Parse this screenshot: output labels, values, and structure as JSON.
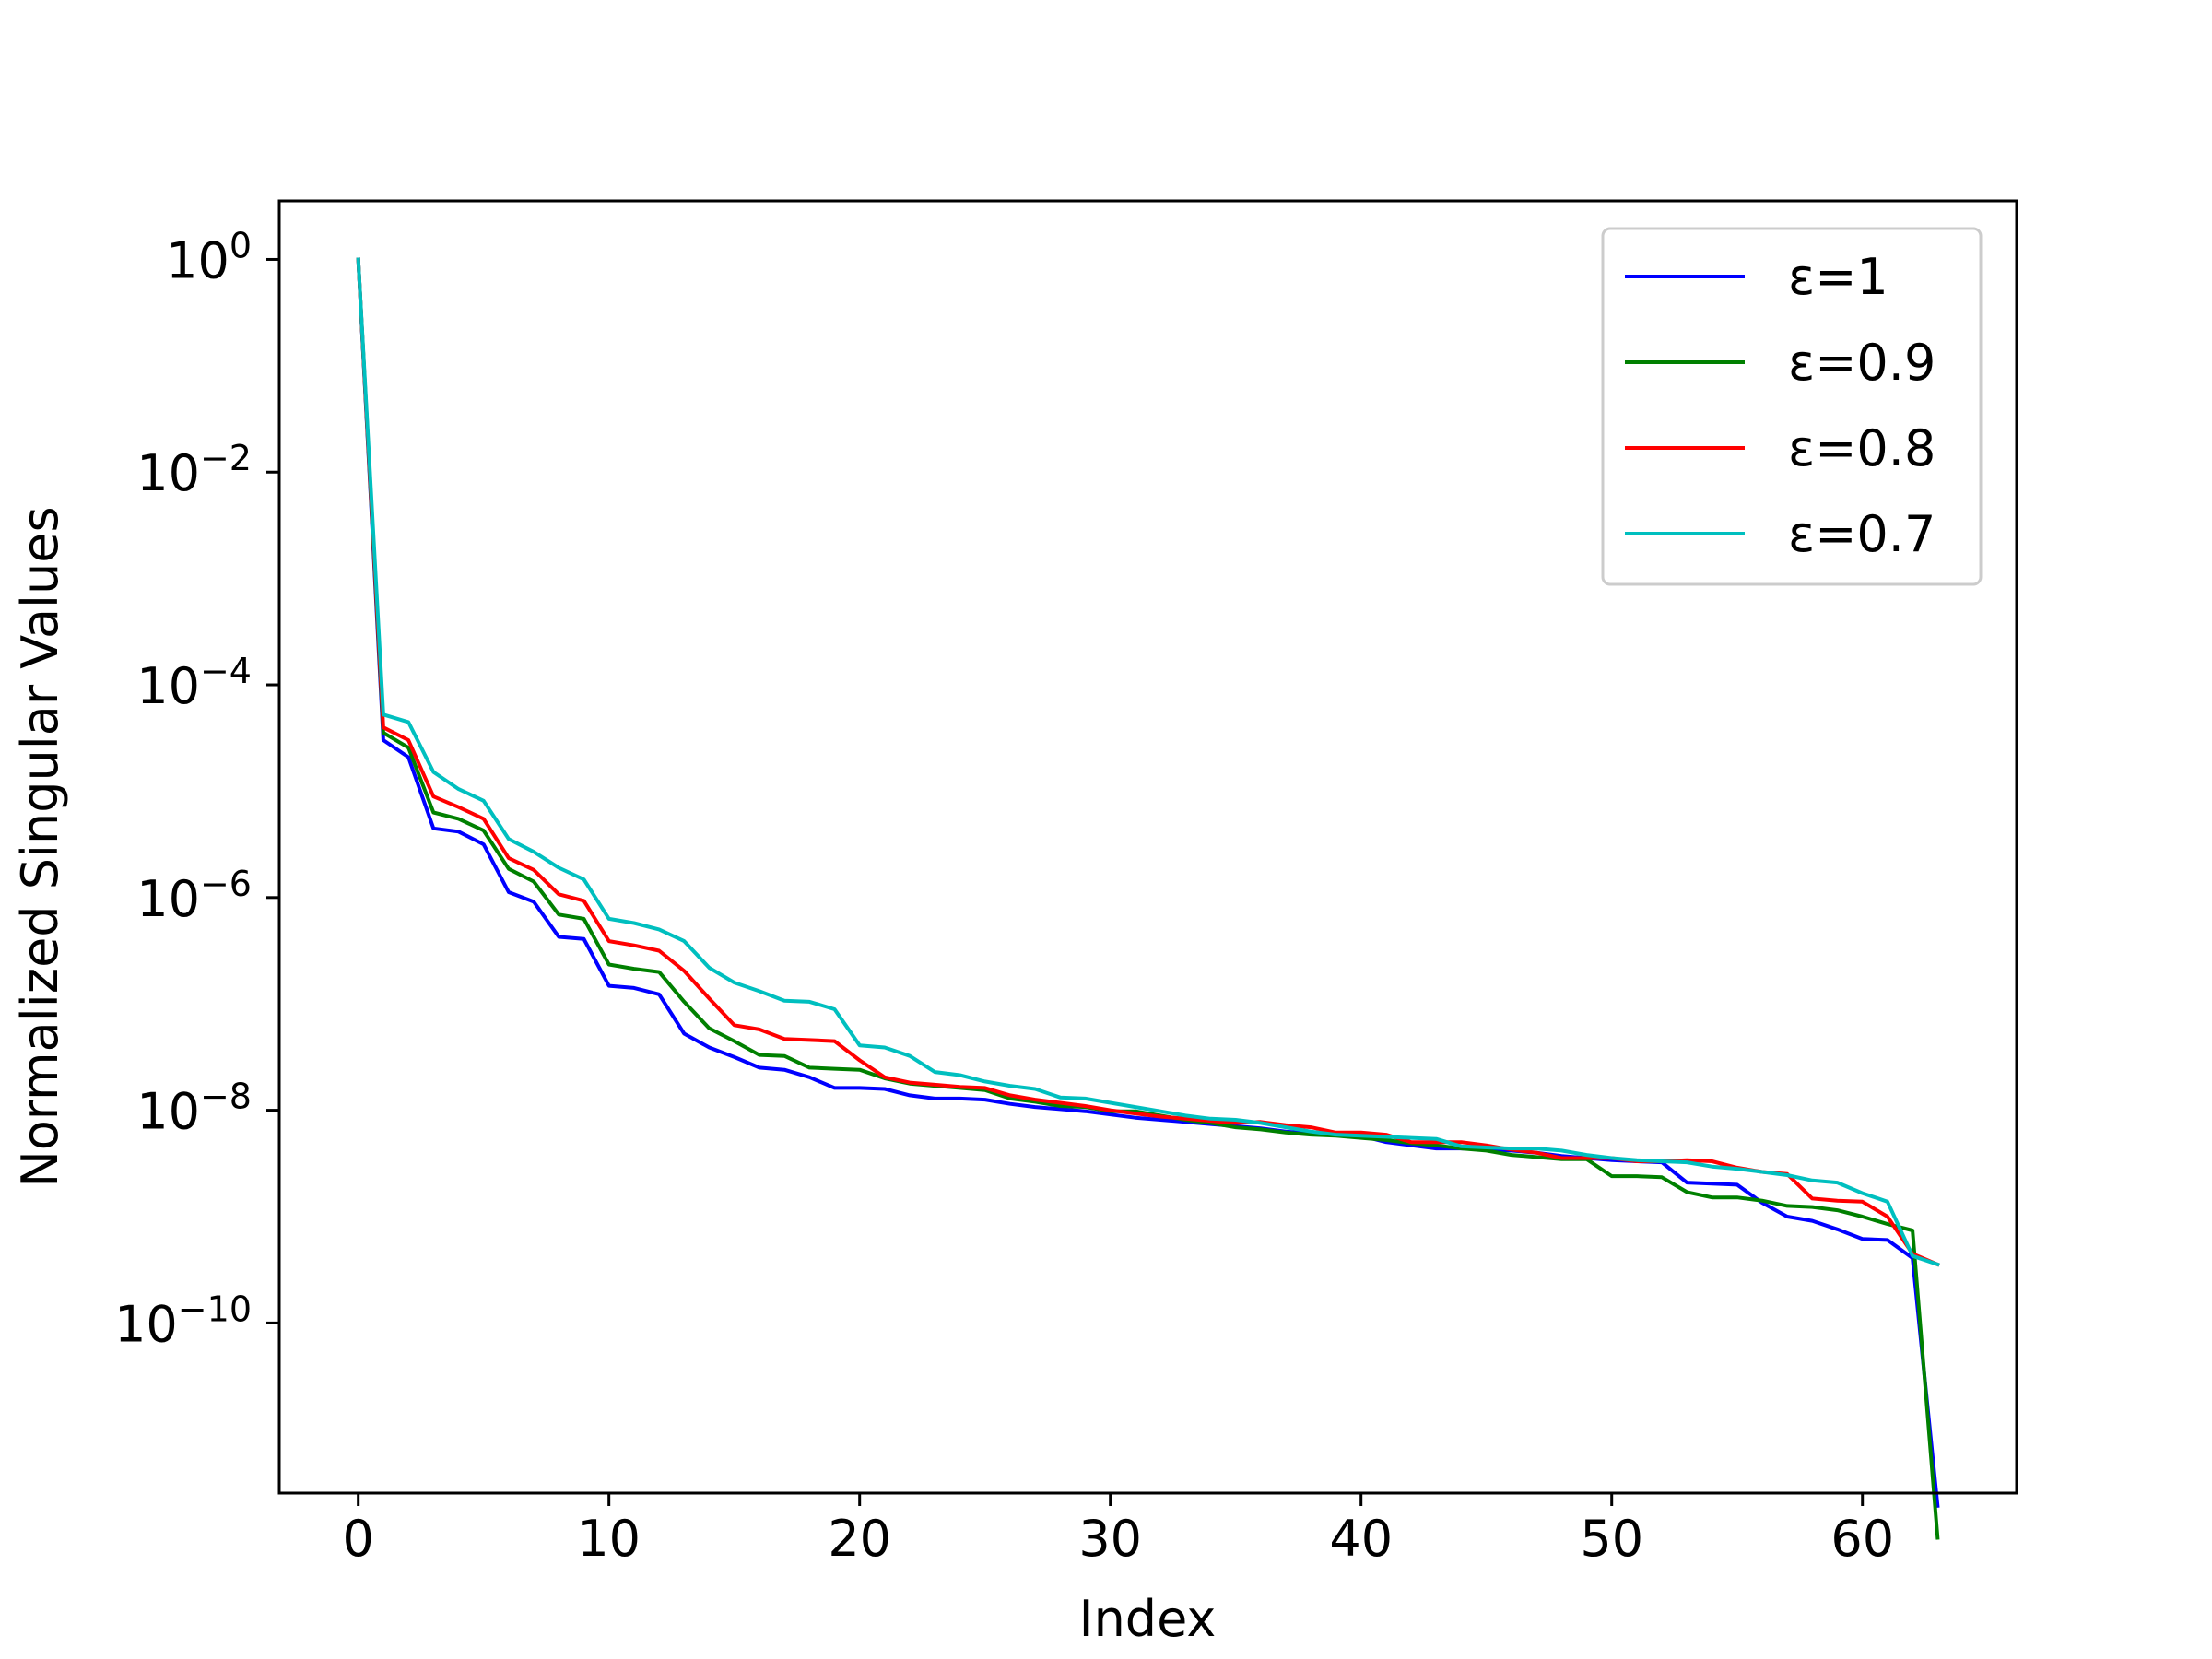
{
  "chart_data": {
    "type": "line",
    "xlabel": "Index",
    "ylabel": "Normalized Singular Values",
    "xlim": [
      -3.15,
      66.15
    ],
    "ylim_log10": [
      -11.6,
      0.55
    ],
    "yscale": "log",
    "grid": false,
    "legend_position": "top-right",
    "x_ticks": [
      0,
      10,
      20,
      30,
      40,
      50,
      60
    ],
    "y_ticks_exponents": [
      0,
      -2,
      -4,
      -6,
      -8,
      -10
    ],
    "y_tick_base": "10",
    "x": [
      0,
      1,
      2,
      3,
      4,
      5,
      6,
      7,
      8,
      9,
      10,
      11,
      12,
      13,
      14,
      15,
      16,
      17,
      18,
      19,
      20,
      21,
      22,
      23,
      24,
      25,
      26,
      27,
      28,
      29,
      30,
      31,
      32,
      33,
      34,
      35,
      36,
      37,
      38,
      39,
      40,
      41,
      42,
      43,
      44,
      45,
      46,
      47,
      48,
      49,
      50,
      51,
      52,
      53,
      54,
      55,
      56,
      57,
      58,
      59,
      60,
      61,
      62,
      63
    ],
    "series": [
      {
        "name": "ε=1",
        "color": "#0000ff",
        "log10_values": [
          0,
          -4.52,
          -4.68,
          -5.35,
          -5.38,
          -5.5,
          -5.95,
          -6.04,
          -6.37,
          -6.39,
          -6.83,
          -6.85,
          -6.91,
          -7.28,
          -7.41,
          -7.5,
          -7.6,
          -7.62,
          -7.69,
          -7.79,
          -7.79,
          -7.8,
          -7.86,
          -7.89,
          -7.89,
          -7.9,
          -7.94,
          -7.97,
          -7.99,
          -8.01,
          -8.04,
          -8.07,
          -8.09,
          -8.11,
          -8.13,
          -8.15,
          -8.17,
          -8.2,
          -8.22,
          -8.23,
          -8.24,
          -8.3,
          -8.33,
          -8.36,
          -8.36,
          -8.37,
          -8.38,
          -8.4,
          -8.43,
          -8.45,
          -8.47,
          -8.48,
          -8.49,
          -8.68,
          -8.69,
          -8.7,
          -8.87,
          -9.0,
          -9.04,
          -9.12,
          -9.21,
          -9.22,
          -9.39,
          -11.72
        ]
      },
      {
        "name": "ε=0.9",
        "color": "#008000",
        "log10_values": [
          0,
          -4.45,
          -4.59,
          -5.2,
          -5.26,
          -5.37,
          -5.73,
          -5.85,
          -6.16,
          -6.2,
          -6.63,
          -6.67,
          -6.7,
          -6.98,
          -7.23,
          -7.35,
          -7.48,
          -7.49,
          -7.6,
          -7.61,
          -7.62,
          -7.7,
          -7.75,
          -7.77,
          -7.79,
          -7.81,
          -7.89,
          -7.92,
          -7.96,
          -7.97,
          -8.01,
          -8.01,
          -8.05,
          -8.09,
          -8.12,
          -8.16,
          -8.18,
          -8.21,
          -8.23,
          -8.24,
          -8.26,
          -8.28,
          -8.31,
          -8.33,
          -8.36,
          -8.38,
          -8.42,
          -8.44,
          -8.46,
          -8.46,
          -8.62,
          -8.62,
          -8.63,
          -8.77,
          -8.82,
          -8.82,
          -8.85,
          -8.9,
          -8.91,
          -8.94,
          -9.0,
          -9.07,
          -9.13,
          -12.02
        ]
      },
      {
        "name": "ε=0.8",
        "color": "#ff0000",
        "log10_values": [
          0,
          -4.4,
          -4.52,
          -5.05,
          -5.15,
          -5.26,
          -5.63,
          -5.74,
          -5.97,
          -6.03,
          -6.41,
          -6.45,
          -6.5,
          -6.69,
          -6.95,
          -7.2,
          -7.24,
          -7.33,
          -7.34,
          -7.35,
          -7.53,
          -7.69,
          -7.74,
          -7.76,
          -7.78,
          -7.79,
          -7.86,
          -7.9,
          -7.93,
          -7.96,
          -8.0,
          -8.03,
          -8.06,
          -8.08,
          -8.1,
          -8.12,
          -8.11,
          -8.14,
          -8.16,
          -8.21,
          -8.21,
          -8.23,
          -8.3,
          -8.3,
          -8.3,
          -8.33,
          -8.37,
          -8.4,
          -8.45,
          -8.45,
          -8.45,
          -8.48,
          -8.48,
          -8.47,
          -8.48,
          -8.54,
          -8.58,
          -8.6,
          -8.83,
          -8.85,
          -8.86,
          -9.0,
          -9.35,
          -9.45
        ]
      },
      {
        "name": "ε=0.7",
        "color": "#00bfbf",
        "log10_values": [
          0,
          -4.28,
          -4.35,
          -4.82,
          -4.98,
          -5.09,
          -5.45,
          -5.57,
          -5.72,
          -5.83,
          -6.2,
          -6.24,
          -6.3,
          -6.41,
          -6.66,
          -6.8,
          -6.88,
          -6.97,
          -6.98,
          -7.05,
          -7.39,
          -7.41,
          -7.49,
          -7.64,
          -7.67,
          -7.73,
          -7.77,
          -7.8,
          -7.88,
          -7.89,
          -7.93,
          -7.97,
          -8.01,
          -8.05,
          -8.08,
          -8.09,
          -8.12,
          -8.16,
          -8.2,
          -8.23,
          -8.24,
          -8.25,
          -8.26,
          -8.27,
          -8.34,
          -8.35,
          -8.36,
          -8.36,
          -8.38,
          -8.42,
          -8.45,
          -8.47,
          -8.48,
          -8.49,
          -8.53,
          -8.55,
          -8.58,
          -8.61,
          -8.66,
          -8.68,
          -8.78,
          -8.86,
          -9.37,
          -9.45
        ]
      }
    ]
  }
}
